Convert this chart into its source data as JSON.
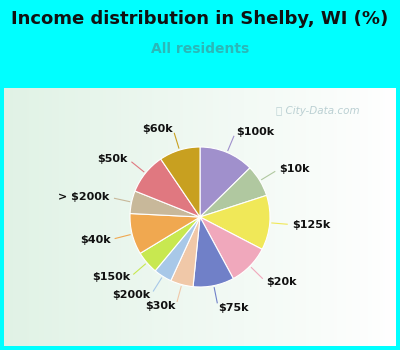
{
  "title": "Income distribution in Shelby, WI (%)",
  "subtitle": "All residents",
  "background_cyan": "#00FFFF",
  "watermark": "City-Data.com",
  "labels": [
    "$100k",
    "$10k",
    "$125k",
    "$20k",
    "$75k",
    "$30k",
    "$200k",
    "$150k",
    "$40k",
    "> $200k",
    "$50k",
    "$60k"
  ],
  "sizes": [
    12,
    7,
    12,
    9,
    9,
    5,
    4,
    5,
    9,
    5,
    9,
    9
  ],
  "colors": [
    "#a090cc",
    "#b0c8a0",
    "#f0e858",
    "#f0a8bc",
    "#7080c8",
    "#f0c8a8",
    "#a8c8e8",
    "#c8e850",
    "#f0a850",
    "#c8b89a",
    "#e07880",
    "#c8a020"
  ],
  "label_fontsize": 8,
  "title_fontsize": 13,
  "subtitle_fontsize": 10,
  "subtitle_color": "#2ab8b8",
  "title_color": "#111111"
}
